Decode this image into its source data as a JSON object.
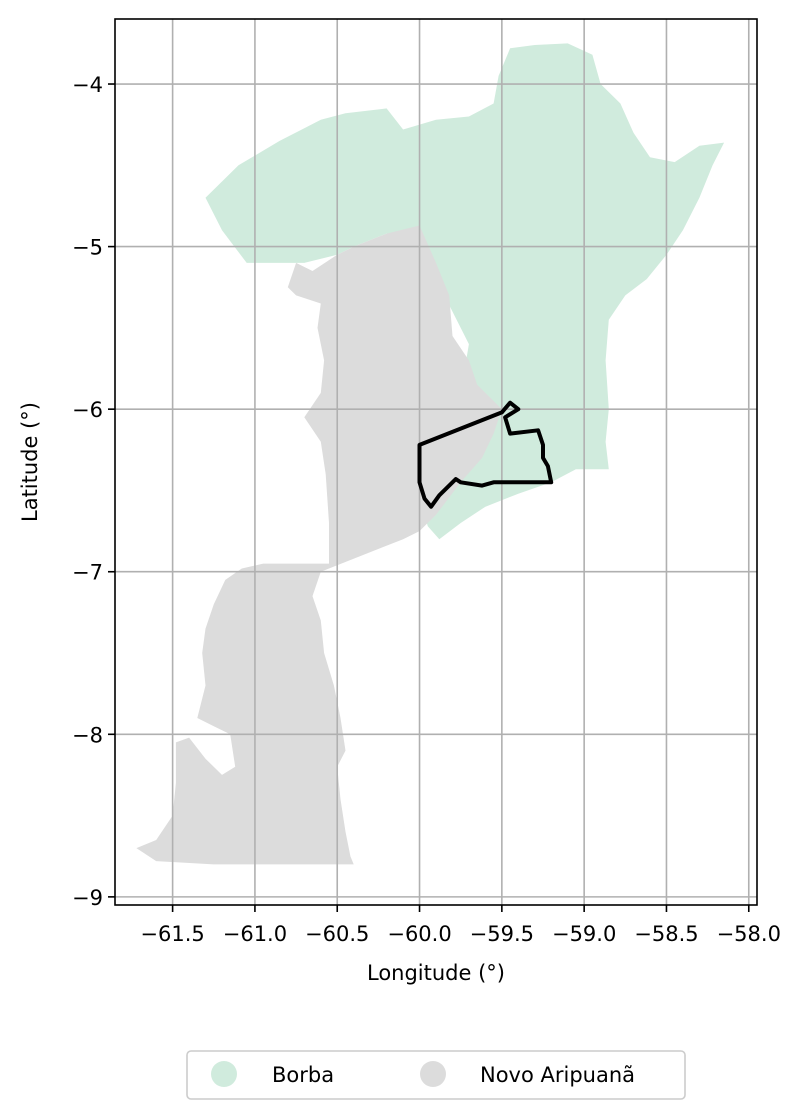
{
  "chart_data": {
    "type": "map",
    "xlabel": "Longitude (°)",
    "ylabel": "Latitude (°)",
    "xlim": [
      -61.85,
      -57.95
    ],
    "ylim": [
      -9.05,
      -3.6
    ],
    "grid": true,
    "legend_placement": "bottom-center",
    "x_ticks": [
      {
        "value": -61.5,
        "label": "−61.5"
      },
      {
        "value": -61.0,
        "label": "−61.0"
      },
      {
        "value": -60.5,
        "label": "−60.5"
      },
      {
        "value": -60.0,
        "label": "−60.0"
      },
      {
        "value": -59.5,
        "label": "−59.5"
      },
      {
        "value": -59.0,
        "label": "−59.0"
      },
      {
        "value": -58.5,
        "label": "−58.5"
      },
      {
        "value": -58.0,
        "label": "−58.0"
      }
    ],
    "y_ticks": [
      {
        "value": -4,
        "label": "−4"
      },
      {
        "value": -5,
        "label": "−5"
      },
      {
        "value": -6,
        "label": "−6"
      },
      {
        "value": -7,
        "label": "−7"
      },
      {
        "value": -8,
        "label": "−8"
      },
      {
        "value": -9,
        "label": "−9"
      }
    ],
    "regions": [
      {
        "name": "Borba",
        "color": "#d0ebdd",
        "polygon": [
          [
            -61.3,
            -4.7
          ],
          [
            -61.1,
            -4.5
          ],
          [
            -60.85,
            -4.35
          ],
          [
            -60.6,
            -4.22
          ],
          [
            -60.45,
            -4.18
          ],
          [
            -60.2,
            -4.15
          ],
          [
            -60.1,
            -4.28
          ],
          [
            -59.9,
            -4.22
          ],
          [
            -59.7,
            -4.2
          ],
          [
            -59.55,
            -4.12
          ],
          [
            -59.52,
            -3.95
          ],
          [
            -59.45,
            -3.78
          ],
          [
            -59.3,
            -3.76
          ],
          [
            -59.1,
            -3.75
          ],
          [
            -58.95,
            -3.82
          ],
          [
            -58.9,
            -4.0
          ],
          [
            -58.78,
            -4.12
          ],
          [
            -58.7,
            -4.3
          ],
          [
            -58.6,
            -4.45
          ],
          [
            -58.45,
            -4.48
          ],
          [
            -58.3,
            -4.38
          ],
          [
            -58.15,
            -4.36
          ],
          [
            -58.22,
            -4.5
          ],
          [
            -58.3,
            -4.7
          ],
          [
            -58.4,
            -4.9
          ],
          [
            -58.5,
            -5.05
          ],
          [
            -58.62,
            -5.2
          ],
          [
            -58.75,
            -5.3
          ],
          [
            -58.85,
            -5.45
          ],
          [
            -58.87,
            -5.7
          ],
          [
            -58.85,
            -6.0
          ],
          [
            -58.87,
            -6.2
          ],
          [
            -58.85,
            -6.37
          ],
          [
            -59.05,
            -6.37
          ],
          [
            -59.2,
            -6.45
          ],
          [
            -59.4,
            -6.52
          ],
          [
            -59.6,
            -6.6
          ],
          [
            -59.75,
            -6.7
          ],
          [
            -59.88,
            -6.8
          ],
          [
            -59.95,
            -6.72
          ],
          [
            -60.0,
            -6.55
          ],
          [
            -60.0,
            -6.2
          ],
          [
            -59.9,
            -6.1
          ],
          [
            -59.8,
            -6.0
          ],
          [
            -59.75,
            -5.9
          ],
          [
            -59.7,
            -5.6
          ],
          [
            -59.8,
            -5.4
          ],
          [
            -59.9,
            -5.2
          ],
          [
            -60.0,
            -4.9
          ],
          [
            -60.2,
            -4.92
          ],
          [
            -60.4,
            -5.0
          ],
          [
            -60.5,
            -5.05
          ],
          [
            -60.7,
            -5.1
          ],
          [
            -61.05,
            -5.1
          ],
          [
            -61.2,
            -4.9
          ]
        ]
      },
      {
        "name": "Novo Aripuanã",
        "color": "#dcdcdc",
        "polygon": [
          [
            -60.5,
            -5.05
          ],
          [
            -60.4,
            -5.0
          ],
          [
            -60.2,
            -4.92
          ],
          [
            -60.0,
            -4.87
          ],
          [
            -59.9,
            -5.1
          ],
          [
            -59.82,
            -5.3
          ],
          [
            -59.8,
            -5.55
          ],
          [
            -59.7,
            -5.7
          ],
          [
            -59.65,
            -5.85
          ],
          [
            -59.55,
            -5.95
          ],
          [
            -59.5,
            -6.0
          ],
          [
            -59.55,
            -6.15
          ],
          [
            -59.62,
            -6.3
          ],
          [
            -59.75,
            -6.45
          ],
          [
            -59.9,
            -6.65
          ],
          [
            -60.0,
            -6.75
          ],
          [
            -60.1,
            -6.8
          ],
          [
            -60.6,
            -7.0
          ],
          [
            -60.65,
            -7.15
          ],
          [
            -60.6,
            -7.3
          ],
          [
            -60.58,
            -7.5
          ],
          [
            -60.52,
            -7.7
          ],
          [
            -60.48,
            -7.9
          ],
          [
            -60.45,
            -8.1
          ],
          [
            -60.5,
            -8.2
          ],
          [
            -60.48,
            -8.4
          ],
          [
            -60.45,
            -8.6
          ],
          [
            -60.42,
            -8.75
          ],
          [
            -60.4,
            -8.8
          ],
          [
            -60.8,
            -8.8
          ],
          [
            -61.25,
            -8.8
          ],
          [
            -61.6,
            -8.78
          ],
          [
            -61.72,
            -8.7
          ],
          [
            -61.6,
            -8.65
          ],
          [
            -61.5,
            -8.5
          ],
          [
            -61.48,
            -8.3
          ],
          [
            -61.48,
            -8.05
          ],
          [
            -61.4,
            -8.02
          ],
          [
            -61.3,
            -8.15
          ],
          [
            -61.2,
            -8.25
          ],
          [
            -61.12,
            -8.2
          ],
          [
            -61.15,
            -8.0
          ],
          [
            -61.25,
            -7.95
          ],
          [
            -61.35,
            -7.9
          ],
          [
            -61.3,
            -7.7
          ],
          [
            -61.32,
            -7.5
          ],
          [
            -61.3,
            -7.35
          ],
          [
            -61.25,
            -7.2
          ],
          [
            -61.18,
            -7.05
          ],
          [
            -61.08,
            -6.98
          ],
          [
            -60.95,
            -6.95
          ],
          [
            -60.55,
            -6.95
          ],
          [
            -60.55,
            -6.7
          ],
          [
            -60.57,
            -6.4
          ],
          [
            -60.6,
            -6.2
          ],
          [
            -60.7,
            -6.05
          ],
          [
            -60.6,
            -5.9
          ],
          [
            -60.58,
            -5.7
          ],
          [
            -60.62,
            -5.5
          ],
          [
            -60.6,
            -5.35
          ],
          [
            -60.75,
            -5.3
          ],
          [
            -60.8,
            -5.25
          ],
          [
            -60.75,
            -5.1
          ],
          [
            -60.65,
            -5.15
          ]
        ]
      }
    ],
    "outline": {
      "color": "#000000",
      "polygon": [
        [
          -60.0,
          -6.22
        ],
        [
          -59.5,
          -6.02
        ],
        [
          -59.45,
          -5.96
        ],
        [
          -59.4,
          -6.0
        ],
        [
          -59.48,
          -6.05
        ],
        [
          -59.45,
          -6.15
        ],
        [
          -59.28,
          -6.13
        ],
        [
          -59.25,
          -6.22
        ],
        [
          -59.25,
          -6.3
        ],
        [
          -59.22,
          -6.35
        ],
        [
          -59.2,
          -6.45
        ],
        [
          -59.55,
          -6.45
        ],
        [
          -59.62,
          -6.47
        ],
        [
          -59.75,
          -6.45
        ],
        [
          -59.78,
          -6.43
        ],
        [
          -59.82,
          -6.47
        ],
        [
          -59.88,
          -6.53
        ],
        [
          -59.93,
          -6.6
        ],
        [
          -59.97,
          -6.55
        ],
        [
          -60.0,
          -6.45
        ]
      ]
    },
    "legend": [
      {
        "label": "Borba",
        "color": "#d0ebdd"
      },
      {
        "label": "Novo Aripuanã",
        "color": "#dcdcdc"
      }
    ]
  }
}
